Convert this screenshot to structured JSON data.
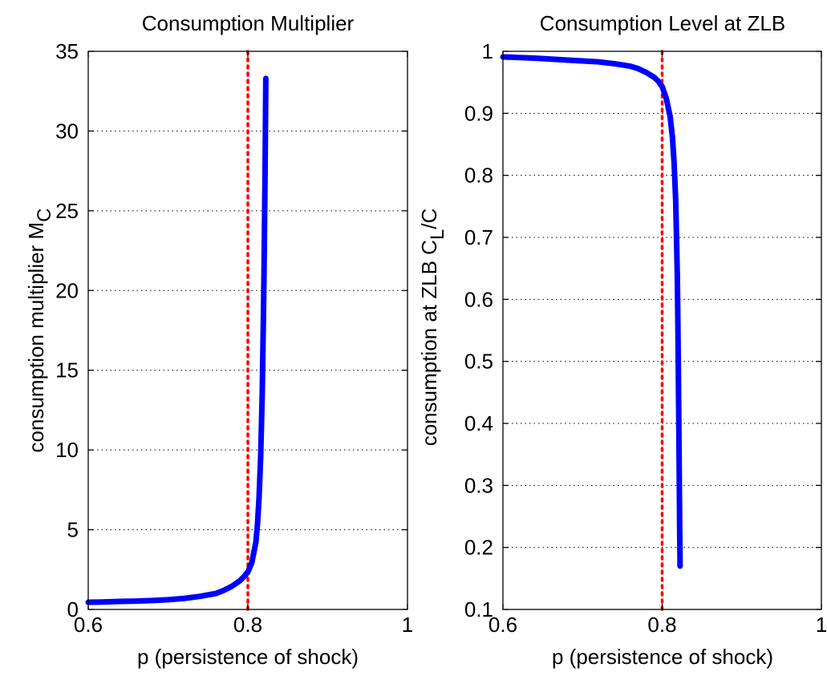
{
  "chart_data": [
    {
      "type": "line",
      "title": "Consumption Multiplier",
      "xlabel": "p (persistence of shock)",
      "ylabel": {
        "main": "consumption multiplier M",
        "sub": "C",
        "suffix": ""
      },
      "xlim": [
        0.6,
        1
      ],
      "ylim": [
        0,
        35
      ],
      "xticks": [
        0.6,
        0.8,
        1
      ],
      "xtick_labels": [
        "0.6",
        "0.8",
        "1"
      ],
      "yticks": [
        0,
        5,
        10,
        15,
        20,
        25,
        30,
        35
      ],
      "ytick_labels": [
        "0",
        "5",
        "10",
        "15",
        "20",
        "25",
        "30",
        "35"
      ],
      "grid": "y-dotted",
      "reference_line": {
        "x": 0.8,
        "color": "#ff0000",
        "style": "dotted"
      },
      "series": [
        {
          "color": "#0000ff",
          "x": [
            0.6,
            0.62,
            0.64,
            0.66,
            0.68,
            0.7,
            0.72,
            0.74,
            0.76,
            0.77,
            0.78,
            0.79,
            0.795,
            0.8,
            0.805,
            0.81,
            0.812,
            0.814,
            0.816,
            0.818,
            0.82,
            0.8215,
            0.8225
          ],
          "y": [
            0.45,
            0.47,
            0.5,
            0.52,
            0.56,
            0.61,
            0.69,
            0.82,
            1.0,
            1.2,
            1.45,
            1.8,
            2.05,
            2.35,
            2.95,
            4.2,
            5.3,
            7.0,
            9.5,
            13.5,
            20.0,
            27.0,
            33.3
          ]
        }
      ]
    },
    {
      "type": "line",
      "title": "Consumption Level at ZLB",
      "xlabel": "p (persistence of shock)",
      "ylabel": {
        "main": "consumption at ZLB C",
        "sub": "L",
        "suffix": "/C"
      },
      "xlim": [
        0.6,
        1
      ],
      "ylim": [
        0.1,
        1
      ],
      "xticks": [
        0.6,
        0.8,
        1
      ],
      "xtick_labels": [
        "0.6",
        "0.8",
        "1"
      ],
      "yticks": [
        0.1,
        0.2,
        0.3,
        0.4,
        0.5,
        0.6,
        0.7,
        0.8,
        0.9,
        1
      ],
      "ytick_labels": [
        "0.1",
        "0.2",
        "0.3",
        "0.4",
        "0.5",
        "0.6",
        "0.7",
        "0.8",
        "0.9",
        "1"
      ],
      "grid": "y-dotted",
      "reference_line": {
        "x": 0.8,
        "color": "#ff0000",
        "style": "dotted"
      },
      "series": [
        {
          "color": "#0000ff",
          "x": [
            0.6,
            0.64,
            0.68,
            0.72,
            0.74,
            0.76,
            0.77,
            0.78,
            0.79,
            0.795,
            0.8,
            0.805,
            0.81,
            0.813,
            0.815,
            0.817,
            0.818,
            0.819,
            0.8195,
            0.82,
            0.8205,
            0.821,
            0.8215,
            0.822,
            0.8225
          ],
          "y": [
            0.991,
            0.989,
            0.986,
            0.983,
            0.98,
            0.976,
            0.972,
            0.966,
            0.958,
            0.952,
            0.943,
            0.925,
            0.895,
            0.86,
            0.82,
            0.76,
            0.7,
            0.64,
            0.59,
            0.53,
            0.46,
            0.39,
            0.31,
            0.23,
            0.17
          ]
        }
      ]
    }
  ]
}
